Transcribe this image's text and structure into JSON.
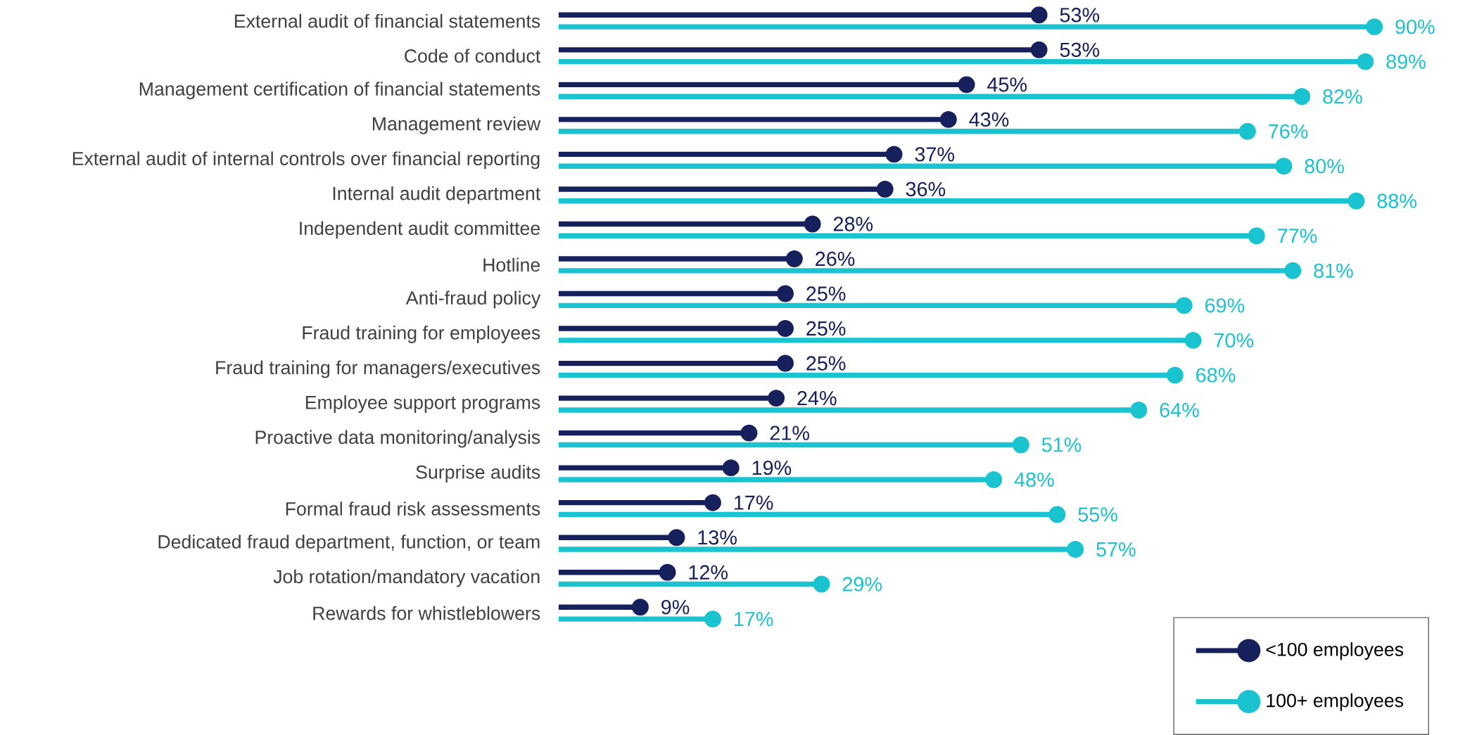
{
  "chart_data": {
    "type": "lollipop",
    "orientation": "horizontal",
    "legend": "bottom right",
    "categories": [
      "External audit of financial statements",
      "Code of conduct",
      "Management certification of financial statements",
      "Management review",
      "External audit of internal controls over financial reporting",
      "Internal audit department",
      "Independent audit committee",
      "Hotline",
      "Anti-fraud policy",
      "Fraud training for employees",
      "Fraud training for managers/executives",
      "Employee support programs",
      "Proactive data monitoring/analysis",
      "Surprise audits",
      "Formal fraud risk assessments",
      "Dedicated fraud department, function, or team",
      "Job rotation/mandatory vacation",
      "Rewards for whistleblowers"
    ],
    "series": [
      {
        "name": "<100 employees",
        "color": "#16205c",
        "values": [
          53,
          53,
          45,
          43,
          37,
          36,
          28,
          26,
          25,
          25,
          25,
          24,
          21,
          19,
          17,
          13,
          12,
          9
        ],
        "value_labels": [
          "53%",
          "53%",
          "45%",
          "43%",
          "37%",
          "36%",
          "28%",
          "26%",
          "25%",
          "25%",
          "25%",
          "24%",
          "21%",
          "19%",
          "17%",
          "13%",
          "12%",
          "9%"
        ]
      },
      {
        "name": "100+ employees",
        "color": "#19c3d0",
        "values": [
          90,
          89,
          82,
          76,
          80,
          88,
          77,
          81,
          69,
          70,
          68,
          64,
          51,
          48,
          55,
          57,
          29,
          17
        ],
        "value_labels": [
          "90%",
          "89%",
          "82%",
          "76%",
          "80%",
          "88%",
          "77%",
          "81%",
          "69%",
          "70%",
          "68%",
          "64%",
          "51%",
          "48%",
          "55%",
          "57%",
          "29%",
          "17%"
        ]
      }
    ]
  }
}
